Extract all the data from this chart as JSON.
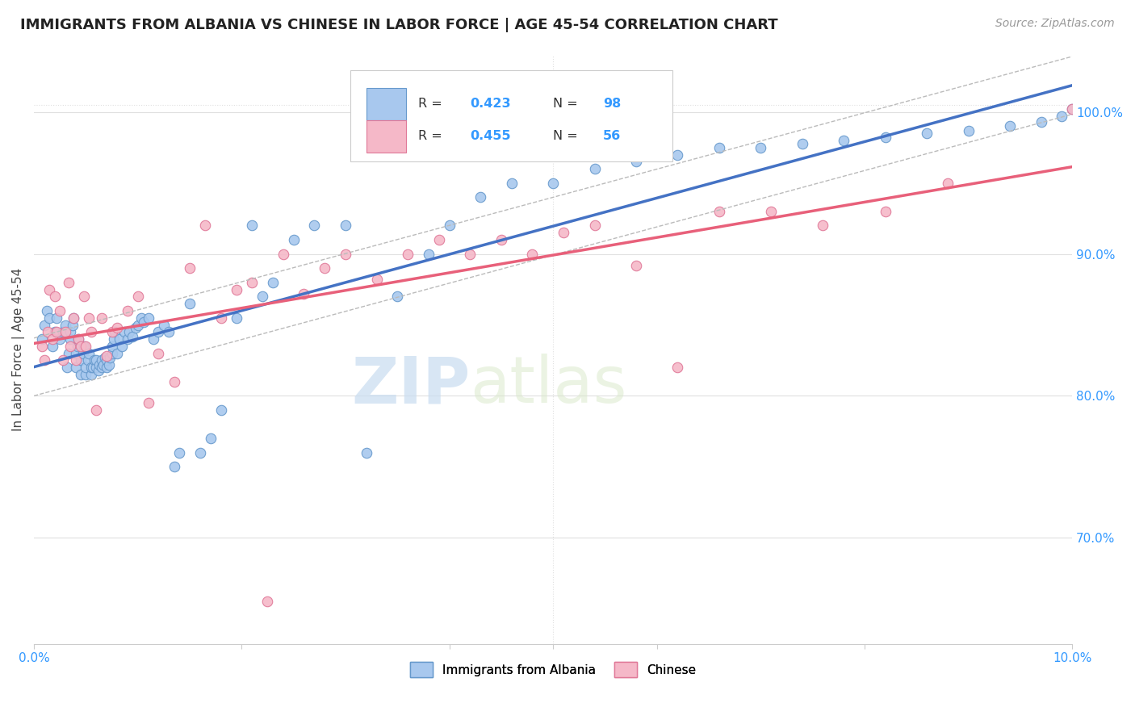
{
  "title": "IMMIGRANTS FROM ALBANIA VS CHINESE IN LABOR FORCE | AGE 45-54 CORRELATION CHART",
  "source": "Source: ZipAtlas.com",
  "ylabel": "In Labor Force | Age 45-54",
  "ytick_values": [
    0.7,
    0.8,
    0.9,
    1.0
  ],
  "xmin": 0.0,
  "xmax": 0.1,
  "ymin": 0.625,
  "ymax": 1.04,
  "albania_color": "#A8C8EE",
  "albania_edge_color": "#6699CC",
  "chinese_color": "#F5B8C8",
  "chinese_edge_color": "#E07898",
  "albania_R": 0.423,
  "albania_N": 98,
  "chinese_R": 0.455,
  "chinese_N": 56,
  "albania_line_color": "#4472C4",
  "chinese_line_color": "#E8607A",
  "ci_line_color": "#BBBBBB",
  "marker_size": 9,
  "albania_scatter_x": [
    0.0008,
    0.001,
    0.0012,
    0.0015,
    0.0018,
    0.002,
    0.0022,
    0.0025,
    0.0028,
    0.003,
    0.0032,
    0.0033,
    0.0035,
    0.0035,
    0.0037,
    0.0038,
    0.004,
    0.004,
    0.0042,
    0.0043,
    0.0045,
    0.0045,
    0.0047,
    0.0048,
    0.005,
    0.005,
    0.0052,
    0.0053,
    0.0055,
    0.0055,
    0.0057,
    0.0058,
    0.006,
    0.006,
    0.0062,
    0.0063,
    0.0065,
    0.0065,
    0.0067,
    0.0068,
    0.007,
    0.007,
    0.0072,
    0.0073,
    0.0075,
    0.0075,
    0.0077,
    0.0078,
    0.008,
    0.0082,
    0.0085,
    0.0087,
    0.009,
    0.0092,
    0.0095,
    0.0098,
    0.01,
    0.0103,
    0.0106,
    0.011,
    0.0115,
    0.012,
    0.0125,
    0.013,
    0.0135,
    0.014,
    0.015,
    0.016,
    0.017,
    0.018,
    0.0195,
    0.021,
    0.022,
    0.023,
    0.025,
    0.027,
    0.03,
    0.032,
    0.035,
    0.038,
    0.04,
    0.043,
    0.046,
    0.05,
    0.054,
    0.058,
    0.062,
    0.066,
    0.07,
    0.074,
    0.078,
    0.082,
    0.086,
    0.09,
    0.094,
    0.097,
    0.099,
    0.1
  ],
  "albania_scatter_y": [
    0.84,
    0.85,
    0.86,
    0.855,
    0.835,
    0.845,
    0.855,
    0.84,
    0.845,
    0.85,
    0.82,
    0.83,
    0.84,
    0.845,
    0.85,
    0.855,
    0.82,
    0.83,
    0.835,
    0.84,
    0.815,
    0.825,
    0.83,
    0.835,
    0.815,
    0.82,
    0.825,
    0.83,
    0.815,
    0.82,
    0.82,
    0.825,
    0.82,
    0.825,
    0.818,
    0.822,
    0.82,
    0.825,
    0.822,
    0.827,
    0.82,
    0.825,
    0.822,
    0.827,
    0.83,
    0.835,
    0.84,
    0.845,
    0.83,
    0.84,
    0.835,
    0.845,
    0.84,
    0.845,
    0.842,
    0.848,
    0.85,
    0.855,
    0.852,
    0.855,
    0.84,
    0.845,
    0.85,
    0.845,
    0.75,
    0.76,
    0.865,
    0.76,
    0.77,
    0.79,
    0.855,
    0.92,
    0.87,
    0.88,
    0.91,
    0.92,
    0.92,
    0.76,
    0.87,
    0.9,
    0.92,
    0.94,
    0.95,
    0.95,
    0.96,
    0.965,
    0.97,
    0.975,
    0.975,
    0.978,
    0.98,
    0.982,
    0.985,
    0.987,
    0.99,
    0.993,
    0.997,
    1.002
  ],
  "chinese_scatter_x": [
    0.0008,
    0.001,
    0.0013,
    0.0015,
    0.0018,
    0.002,
    0.0022,
    0.0025,
    0.0028,
    0.003,
    0.0033,
    0.0035,
    0.0038,
    0.004,
    0.0043,
    0.0045,
    0.0048,
    0.005,
    0.0053,
    0.0055,
    0.006,
    0.0065,
    0.007,
    0.0075,
    0.008,
    0.009,
    0.01,
    0.011,
    0.012,
    0.0135,
    0.015,
    0.0165,
    0.018,
    0.0195,
    0.021,
    0.0225,
    0.024,
    0.026,
    0.028,
    0.03,
    0.033,
    0.036,
    0.039,
    0.042,
    0.045,
    0.048,
    0.051,
    0.054,
    0.058,
    0.062,
    0.066,
    0.071,
    0.076,
    0.082,
    0.088,
    0.1
  ],
  "chinese_scatter_y": [
    0.835,
    0.825,
    0.845,
    0.875,
    0.84,
    0.87,
    0.845,
    0.86,
    0.825,
    0.845,
    0.88,
    0.835,
    0.855,
    0.825,
    0.84,
    0.835,
    0.87,
    0.835,
    0.855,
    0.845,
    0.79,
    0.855,
    0.828,
    0.845,
    0.848,
    0.86,
    0.87,
    0.795,
    0.83,
    0.81,
    0.89,
    0.92,
    0.855,
    0.875,
    0.88,
    0.655,
    0.9,
    0.872,
    0.89,
    0.9,
    0.882,
    0.9,
    0.91,
    0.9,
    0.91,
    0.9,
    0.915,
    0.92,
    0.892,
    0.82,
    0.93,
    0.93,
    0.92,
    0.93,
    0.95,
    1.002
  ],
  "watermark_zip": "ZIP",
  "watermark_atlas": "atlas",
  "grid_color": "#E0E0E0",
  "background_color": "#FFFFFF",
  "legend_label_albania": "Immigrants from Albania",
  "legend_label_chinese": "Chinese"
}
